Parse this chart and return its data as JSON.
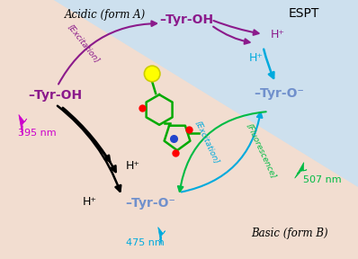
{
  "bg_blue": "#cde0ee",
  "bg_peach": "#f2ddd0",
  "purple": "#8b1a8b",
  "cyan": "#00aadd",
  "green": "#00bb44",
  "black": "#111111",
  "magenta": "#cc00cc",
  "title_acidic": "Acidic (form A)",
  "title_basic": "Basic (form B)",
  "title_espt": "ESPT",
  "label_tyroh_top": "–Tyr-OH",
  "label_tyroh_left": "–Tyr-OH",
  "label_tyro_right": "–Tyr-O⁻",
  "label_tyro_bottom": "–Tyr-O⁻",
  "label_395": "395 nm",
  "label_475": "475 nm",
  "label_507": "507 nm",
  "label_excitation_left": "[Excitation]",
  "label_excitation_right": "[Excitation]",
  "label_fluorescence": "[Fluorescence]",
  "hp": "H⁺"
}
